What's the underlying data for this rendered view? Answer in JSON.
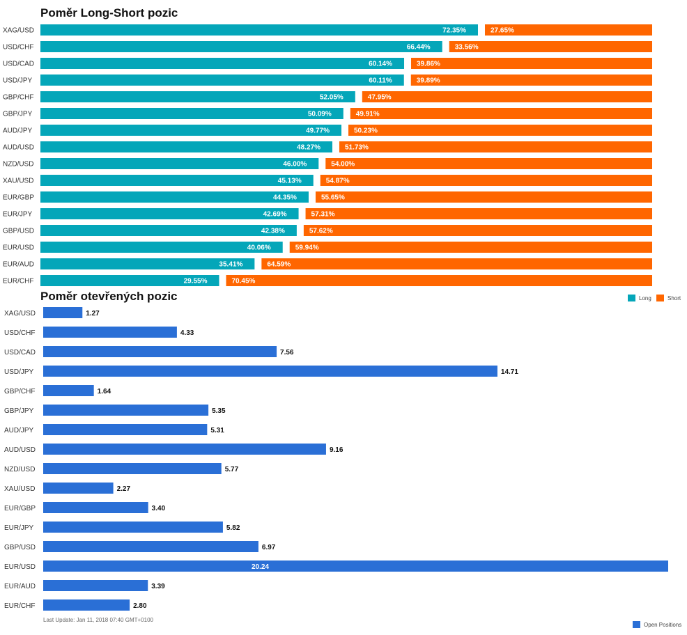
{
  "chart_data": [
    {
      "type": "bar",
      "stacked": true,
      "orientation": "horizontal",
      "title": "Poměr Long-Short pozic",
      "categories": [
        "XAG/USD",
        "USD/CHF",
        "USD/CAD",
        "USD/JPY",
        "GBP/CHF",
        "GBP/JPY",
        "AUD/JPY",
        "AUD/USD",
        "NZD/USD",
        "XAU/USD",
        "EUR/GBP",
        "EUR/JPY",
        "GBP/USD",
        "EUR/USD",
        "EUR/AUD",
        "EUR/CHF"
      ],
      "series": [
        {
          "name": "Long",
          "color": "#04a6b9",
          "values": [
            72.35,
            66.44,
            60.14,
            60.11,
            52.05,
            50.09,
            49.77,
            48.27,
            46.0,
            45.13,
            44.35,
            42.69,
            42.38,
            40.06,
            35.41,
            29.55
          ],
          "labels": [
            "72.35%",
            "66.44%",
            "60.14%",
            "60.11%",
            "52.05%",
            "50.09%",
            "49.77%",
            "48.27%",
            "46.00%",
            "45.13%",
            "44.35%",
            "42.69%",
            "42.38%",
            "40.06%",
            "35.41%",
            "29.55%"
          ]
        },
        {
          "name": "Short",
          "color": "#ff6600",
          "values": [
            27.65,
            33.56,
            39.86,
            39.89,
            47.95,
            49.91,
            50.23,
            51.73,
            54.0,
            54.87,
            55.65,
            57.31,
            57.62,
            59.94,
            64.59,
            70.45
          ],
          "labels": [
            "27.65%",
            "33.56%",
            "39.86%",
            "39.89%",
            "47.95%",
            "49.91%",
            "50.23%",
            "51.73%",
            "54.00%",
            "54.87%",
            "55.65%",
            "57.31%",
            "57.62%",
            "59.94%",
            "64.59%",
            "70.45%"
          ]
        }
      ],
      "xlim": [
        0,
        100
      ],
      "legend": "bottom-right of chart",
      "grid": false
    },
    {
      "type": "bar",
      "orientation": "horizontal",
      "title": "Poměr otevřených pozic",
      "categories": [
        "XAG/USD",
        "USD/CHF",
        "USD/CAD",
        "USD/JPY",
        "GBP/CHF",
        "GBP/JPY",
        "AUD/JPY",
        "AUD/USD",
        "NZD/USD",
        "XAU/USD",
        "EUR/GBP",
        "EUR/JPY",
        "GBP/USD",
        "EUR/USD",
        "EUR/AUD",
        "EUR/CHF"
      ],
      "series": [
        {
          "name": "Open Positions",
          "color": "#2a6fd6",
          "values": [
            1.27,
            4.33,
            7.56,
            14.71,
            1.64,
            5.35,
            5.31,
            9.16,
            5.77,
            2.27,
            3.4,
            5.82,
            6.97,
            20.24,
            3.39,
            2.8
          ],
          "labels": [
            "1.27",
            "4.33",
            "7.56",
            "14.71",
            "1.64",
            "5.35",
            "5.31",
            "9.16",
            "5.77",
            "2.27",
            "3.40",
            "5.82",
            "6.97",
            "20.24",
            "3.39",
            "2.80"
          ]
        }
      ],
      "xlim": [
        0,
        20.24
      ],
      "legend": "bottom-right",
      "grid": false
    }
  ],
  "footer": {
    "last_update": "Last Update: Jan 11, 2018 07:40 GMT+0100"
  }
}
